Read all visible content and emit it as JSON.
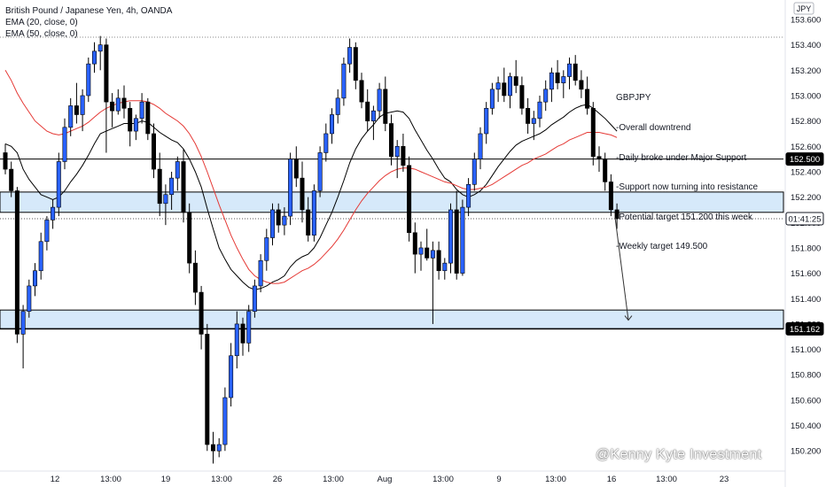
{
  "legend": {
    "title": "British Pound / Japanese Yen, 4h, OANDA",
    "ema20": "EMA (20, close, 0)",
    "ema50": "EMA (50, close, 0)"
  },
  "currency_label": "JPY",
  "note_lines": [
    "GBPJPY",
    "-Overall downtrend",
    "-Daily broke under Major Support",
    "-Support now turning into resistance",
    "-Potential target 151.200 this week",
    "-Weekly target 149.500"
  ],
  "watermark": "@Kenny Kyte Investment",
  "colors": {
    "bull": "#2962ff",
    "bear": "#000000",
    "ema20": "#000000",
    "ema50": "#e53935",
    "zone_fill": "#d6e9fa",
    "zone_border": "#000000",
    "label_bg": "#000000",
    "label_text": "#ffffff"
  },
  "chart_data": {
    "type": "candlestick",
    "symbol": "GBPJPY",
    "timeframe": "4h",
    "ylim": [
      150.15,
      153.66
    ],
    "y_ticks": [
      "153.600",
      "153.400",
      "153.200",
      "153.000",
      "152.800",
      "152.600",
      "152.400",
      "152.200",
      "152.000",
      "151.800",
      "151.600",
      "151.400",
      "151.200",
      "151.000",
      "150.800",
      "150.600",
      "150.400",
      "150.200"
    ],
    "x_ticks": [
      "12",
      "13:00",
      "19",
      "13:00",
      "26",
      "13:00",
      "Aug",
      "13:00",
      "9",
      "13:00",
      "16",
      "13:00",
      "23"
    ],
    "price_labels": [
      "152.500",
      "01:41:25",
      "151.162"
    ],
    "levels": {
      "resistance_line": 152.5,
      "current_price": 152.03,
      "support_line": 151.162,
      "top_dotted": 153.46
    },
    "zones": [
      {
        "from": 152.08,
        "to": 152.24
      },
      {
        "from": 151.162,
        "to": 151.31
      }
    ],
    "arrow": {
      "from_price": 152.04,
      "to_price": 151.23
    },
    "series": [
      {
        "name": "candles",
        "ohlc": [
          [
            152.55,
            152.62,
            152.38,
            152.42
          ],
          [
            152.42,
            152.48,
            152.2,
            152.25
          ],
          [
            152.25,
            152.28,
            151.05,
            151.12
          ],
          [
            151.12,
            151.35,
            150.85,
            151.3
          ],
          [
            151.3,
            151.55,
            151.25,
            151.5
          ],
          [
            151.5,
            151.68,
            151.42,
            151.62
          ],
          [
            151.62,
            151.92,
            151.55,
            151.85
          ],
          [
            151.85,
            152.05,
            151.78,
            152.02
          ],
          [
            152.02,
            152.18,
            151.95,
            152.12
          ],
          [
            152.12,
            152.55,
            152.05,
            152.48
          ],
          [
            152.48,
            152.82,
            152.42,
            152.75
          ],
          [
            152.75,
            152.98,
            152.68,
            152.92
          ],
          [
            152.92,
            153.1,
            152.78,
            152.85
          ],
          [
            152.85,
            153.05,
            152.72,
            153.0
          ],
          [
            153.0,
            153.3,
            152.95,
            153.25
          ],
          [
            153.25,
            153.42,
            153.18,
            153.35
          ],
          [
            153.35,
            153.47,
            153.2,
            153.4
          ],
          [
            153.4,
            153.45,
            152.55,
            152.95
          ],
          [
            152.95,
            153.02,
            152.75,
            152.88
          ],
          [
            152.88,
            153.05,
            152.85,
            152.98
          ],
          [
            152.98,
            153.08,
            152.82,
            152.9
          ],
          [
            152.9,
            152.95,
            152.6,
            152.72
          ],
          [
            152.72,
            152.85,
            152.65,
            152.82
          ],
          [
            152.82,
            153.02,
            152.78,
            152.95
          ],
          [
            152.95,
            152.98,
            152.65,
            152.7
          ],
          [
            152.7,
            152.78,
            152.35,
            152.42
          ],
          [
            152.42,
            152.55,
            152.05,
            152.15
          ],
          [
            152.15,
            152.3,
            151.98,
            152.22
          ],
          [
            152.22,
            152.4,
            152.1,
            152.35
          ],
          [
            152.35,
            152.52,
            152.25,
            152.48
          ],
          [
            152.48,
            152.58,
            152.0,
            152.08
          ],
          [
            152.08,
            152.15,
            151.6,
            151.68
          ],
          [
            151.68,
            151.78,
            151.35,
            151.45
          ],
          [
            151.45,
            151.5,
            151.0,
            151.12
          ],
          [
            151.12,
            151.2,
            150.2,
            150.25
          ],
          [
            150.25,
            150.35,
            150.1,
            150.2
          ],
          [
            150.2,
            150.3,
            150.15,
            150.25
          ],
          [
            150.25,
            150.7,
            150.2,
            150.62
          ],
          [
            150.62,
            151.05,
            150.55,
            150.95
          ],
          [
            150.95,
            151.3,
            150.85,
            151.2
          ],
          [
            151.2,
            151.25,
            150.95,
            151.05
          ],
          [
            151.05,
            151.35,
            150.98,
            151.3
          ],
          [
            151.3,
            151.55,
            151.25,
            151.5
          ],
          [
            151.5,
            151.75,
            151.45,
            151.7
          ],
          [
            151.7,
            151.95,
            151.62,
            151.88
          ],
          [
            151.88,
            152.15,
            151.82,
            152.1
          ],
          [
            152.1,
            152.15,
            151.92,
            151.98
          ],
          [
            151.98,
            152.12,
            151.9,
            152.05
          ],
          [
            152.05,
            152.55,
            151.98,
            152.5
          ],
          [
            152.5,
            152.6,
            152.28,
            152.35
          ],
          [
            152.35,
            152.48,
            152.0,
            152.1
          ],
          [
            152.1,
            152.2,
            151.85,
            151.9
          ],
          [
            151.9,
            152.3,
            151.85,
            152.25
          ],
          [
            152.25,
            152.6,
            152.2,
            152.55
          ],
          [
            152.55,
            152.78,
            152.48,
            152.7
          ],
          [
            152.7,
            152.9,
            152.62,
            152.85
          ],
          [
            152.85,
            153.05,
            152.78,
            152.98
          ],
          [
            152.98,
            153.3,
            152.92,
            153.25
          ],
          [
            153.25,
            153.45,
            153.18,
            153.38
          ],
          [
            153.38,
            153.42,
            153.05,
            153.12
          ],
          [
            153.12,
            153.18,
            152.9,
            152.95
          ],
          [
            152.95,
            153.05,
            152.72,
            152.8
          ],
          [
            152.8,
            152.92,
            152.65,
            152.88
          ],
          [
            152.88,
            153.1,
            152.82,
            153.05
          ],
          [
            153.05,
            153.15,
            152.72,
            152.78
          ],
          [
            152.78,
            152.85,
            152.45,
            152.52
          ],
          [
            152.52,
            152.65,
            152.35,
            152.6
          ],
          [
            152.6,
            152.7,
            152.4,
            152.45
          ],
          [
            152.45,
            152.52,
            151.85,
            151.92
          ],
          [
            151.92,
            152.0,
            151.6,
            151.75
          ],
          [
            151.75,
            151.85,
            151.62,
            151.8
          ],
          [
            151.8,
            151.95,
            151.7,
            151.72
          ],
          [
            151.72,
            151.85,
            151.2,
            151.78
          ],
          [
            151.78,
            151.85,
            151.55,
            151.62
          ],
          [
            151.62,
            151.72,
            151.55,
            151.68
          ],
          [
            151.68,
            152.15,
            151.6,
            152.1
          ],
          [
            152.1,
            152.25,
            151.55,
            151.6
          ],
          [
            151.6,
            152.18,
            151.58,
            152.12
          ],
          [
            152.12,
            152.35,
            152.05,
            152.3
          ],
          [
            152.3,
            152.55,
            152.25,
            152.5
          ],
          [
            152.5,
            152.75,
            152.42,
            152.7
          ],
          [
            152.7,
            152.95,
            152.62,
            152.9
          ],
          [
            152.9,
            153.1,
            152.85,
            153.05
          ],
          [
            153.05,
            153.15,
            152.95,
            153.1
          ],
          [
            153.1,
            153.22,
            152.95,
            153.0
          ],
          [
            153.0,
            153.18,
            152.9,
            153.15
          ],
          [
            153.15,
            153.28,
            153.02,
            153.08
          ],
          [
            153.08,
            153.15,
            152.85,
            152.9
          ],
          [
            152.9,
            152.98,
            152.7,
            152.78
          ],
          [
            152.78,
            152.88,
            152.65,
            152.82
          ],
          [
            152.82,
            153.0,
            152.75,
            152.95
          ],
          [
            152.95,
            153.12,
            152.88,
            153.05
          ],
          [
            153.05,
            153.22,
            152.95,
            153.18
          ],
          [
            153.18,
            153.28,
            153.05,
            153.1
          ],
          [
            153.1,
            153.2,
            152.98,
            153.15
          ],
          [
            153.15,
            153.3,
            153.05,
            153.25
          ],
          [
            153.25,
            153.32,
            153.08,
            153.12
          ],
          [
            153.12,
            153.2,
            152.98,
            153.05
          ],
          [
            153.05,
            153.15,
            152.85,
            152.9
          ],
          [
            152.9,
            152.95,
            152.45,
            152.52
          ],
          [
            152.52,
            152.6,
            152.4,
            152.5
          ],
          [
            152.5,
            152.55,
            152.25,
            152.32
          ],
          [
            152.32,
            152.38,
            152.05,
            152.1
          ],
          [
            152.1,
            152.15,
            151.95,
            152.03
          ]
        ]
      },
      {
        "name": "EMA (20, close, 0)",
        "values": [
          152.62,
          152.6,
          152.55,
          152.42,
          152.34,
          152.28,
          152.22,
          152.2,
          152.18,
          152.2,
          152.25,
          152.32,
          152.38,
          152.45,
          152.53,
          152.62,
          152.7,
          152.72,
          152.74,
          152.76,
          152.78,
          152.78,
          152.78,
          152.8,
          152.79,
          152.75,
          152.71,
          152.68,
          152.65,
          152.63,
          152.58,
          152.5,
          152.4,
          152.28,
          152.11,
          151.95,
          151.8,
          151.71,
          151.63,
          151.58,
          151.53,
          151.49,
          151.47,
          151.48,
          151.5,
          151.53,
          151.55,
          151.58,
          151.65,
          151.7,
          151.73,
          151.75,
          151.8,
          151.88,
          151.98,
          152.08,
          152.2,
          152.33,
          152.47,
          152.58,
          152.66,
          152.72,
          152.77,
          152.83,
          152.86,
          152.87,
          152.88,
          152.87,
          152.82,
          152.73,
          152.65,
          152.57,
          152.5,
          152.42,
          152.35,
          152.32,
          152.26,
          152.22,
          152.2,
          152.22,
          152.25,
          152.3,
          152.37,
          152.44,
          152.5,
          152.56,
          152.61,
          152.64,
          152.66,
          152.68,
          152.7,
          152.73,
          152.77,
          152.8,
          152.83,
          152.87,
          152.9,
          152.92,
          152.93,
          152.9,
          152.86,
          152.82,
          152.77,
          152.72
        ]
      },
      {
        "name": "EMA (50, close, 0)",
        "values": [
          153.2,
          153.12,
          153.02,
          152.94,
          152.87,
          152.8,
          152.76,
          152.72,
          152.7,
          152.69,
          152.7,
          152.72,
          152.74,
          152.76,
          152.79,
          152.83,
          152.87,
          152.9,
          152.92,
          152.94,
          152.95,
          152.96,
          152.96,
          152.96,
          152.95,
          152.93,
          152.9,
          152.86,
          152.83,
          152.8,
          152.76,
          152.7,
          152.62,
          152.52,
          152.4,
          152.27,
          152.14,
          152.02,
          151.9,
          151.8,
          151.71,
          151.63,
          151.58,
          151.55,
          151.53,
          151.52,
          151.52,
          151.53,
          151.56,
          151.59,
          151.62,
          151.64,
          151.67,
          151.71,
          151.76,
          151.81,
          151.87,
          151.94,
          152.02,
          152.1,
          152.17,
          152.23,
          152.28,
          152.33,
          152.37,
          152.4,
          152.42,
          152.43,
          152.43,
          152.42,
          152.4,
          152.38,
          152.36,
          152.34,
          152.32,
          152.31,
          152.29,
          152.27,
          152.26,
          152.26,
          152.27,
          152.28,
          152.3,
          152.33,
          152.36,
          152.39,
          152.42,
          152.45,
          152.47,
          152.5,
          152.52,
          152.54,
          152.57,
          152.6,
          152.62,
          152.65,
          152.67,
          152.69,
          152.71,
          152.71,
          152.71,
          152.7,
          152.69,
          152.67
        ]
      }
    ]
  }
}
